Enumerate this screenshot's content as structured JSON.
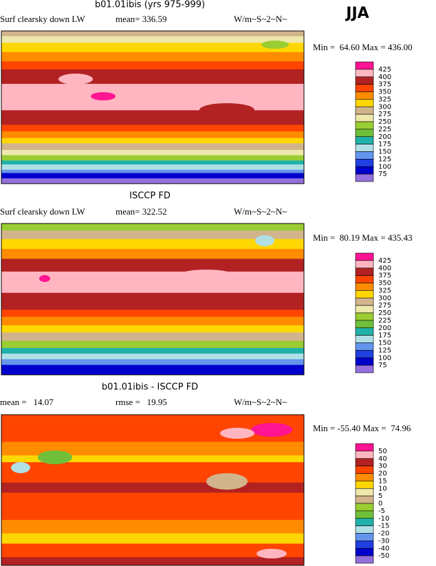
{
  "figure_label": "JJA",
  "panels": [
    {
      "title": "b01.01ibis (yrs 975-999)",
      "left_label": "Surf clearsky down LW",
      "middle_label": "mean= 336.59",
      "units": "W/m~S~2~N~",
      "min_max": "Min =  64.60 Max = 436.00",
      "colorbar_labels": [
        "425",
        "400",
        "375",
        "350",
        "325",
        "300",
        "275",
        "250",
        "225",
        "200",
        "175",
        "150",
        "125",
        "100",
        "75"
      ]
    },
    {
      "title": "ISCCP FD",
      "left_label": "Surf clearsky down LW",
      "middle_label": "mean= 322.52",
      "units": "W/m~S~2~N~",
      "min_max": "Min =  80.19 Max = 435.43",
      "colorbar_labels": [
        "425",
        "400",
        "375",
        "350",
        "325",
        "300",
        "275",
        "250",
        "225",
        "200",
        "175",
        "150",
        "125",
        "100",
        "75"
      ]
    },
    {
      "title": "b01.01ibis - ISCCP FD",
      "left_label": "mean =   14.07",
      "middle_label": "rmse =   19.95",
      "units": "W/m~S~2~N~",
      "min_max": "Min = -55.40 Max =  74.96",
      "colorbar_labels": [
        "50",
        "40",
        "30",
        "20",
        "15",
        "10",
        "5",
        "0",
        "-5",
        "-10",
        "-15",
        "-20",
        "-30",
        "-40",
        "-50"
      ]
    }
  ]
}
